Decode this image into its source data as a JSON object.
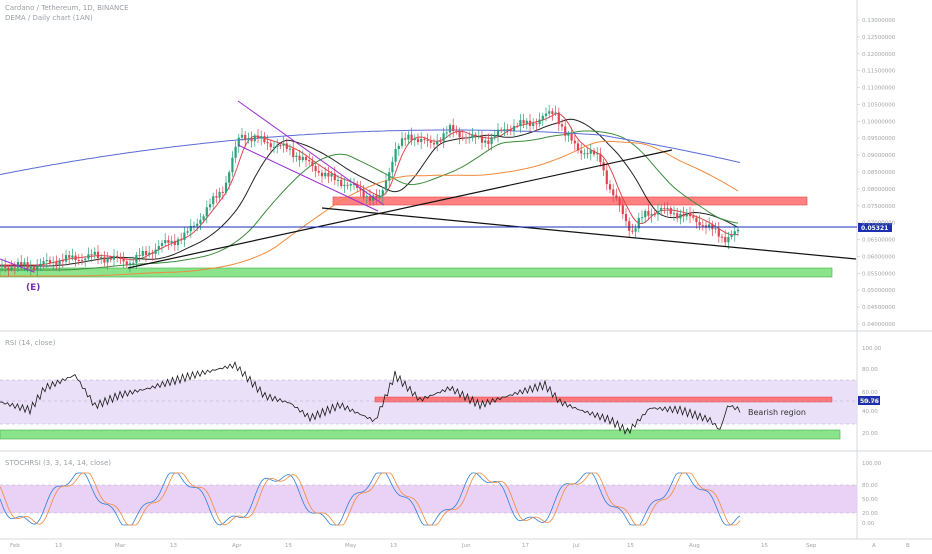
{
  "header": {
    "title": "Cardano / Tethereum, 1D, BINANCE",
    "subtitle": "DEMA / Daily chart (1AN)"
  },
  "colors": {
    "price_line": "#1c2faf",
    "price_tag": "#1c2faf",
    "rsi_tag": "#1c2faf",
    "resistance_zone": "#ff6b6b",
    "support_zone": "#7ee07e",
    "rsi_band": "#e6dcf7",
    "stoch_band": "#e6c9f5",
    "wave_label": "#7b2ea8",
    "ema_black": "#222222",
    "ema_green": "#3c8c3c",
    "ema_orange": "#f08a3c",
    "ema_blue": "#5a6bd6",
    "ema_red": "#e0454f",
    "channel": "#9b2fd0"
  },
  "chart_data": [
    {
      "type": "candlestick",
      "panel": "price",
      "x_axis_labels": [
        "Feb",
        "13",
        "Mar",
        "13",
        "Apr",
        "15",
        "May",
        "13",
        "Jun",
        "17",
        "Jul",
        "15",
        "Aug",
        "15",
        "Sep"
      ],
      "price_axis_labels": [
        "0.13000000",
        "0.12500000",
        "0.12000000",
        "0.11500000",
        "0.11000000",
        "0.10500000",
        "0.10000000",
        "0.09500000",
        "0.09000000",
        "0.08500000",
        "0.08000000",
        "0.07500000",
        "0.07000000",
        "0.06500000",
        "0.06000000",
        "0.05500000",
        "0.05000000",
        "0.04500000",
        "0.04000000"
      ],
      "current_price": "0.05321",
      "annotations": [
        "(E)"
      ],
      "zones": [
        {
          "name": "resistance",
          "color": "red"
        },
        {
          "name": "support",
          "color": "green"
        }
      ]
    },
    {
      "type": "line",
      "panel": "rsi",
      "title": "RSI (14, close)",
      "axis_labels": [
        "100.00",
        "80.00",
        "60.00",
        "50.00",
        "40.00",
        "20.00"
      ],
      "current_value": "50.76",
      "annotations": [
        "Bearish region"
      ],
      "band": [
        30,
        70
      ],
      "midline": 50
    },
    {
      "type": "line",
      "panel": "stoch_rsi",
      "title": "STOCHRSI (3, 3, 14, 14, close)",
      "axis_labels": [
        "100.00",
        "80.00",
        "50.00",
        "20.00",
        "0.00"
      ],
      "band": [
        20,
        80
      ]
    }
  ],
  "footer": {
    "buttons": [
      "A",
      "B"
    ]
  }
}
